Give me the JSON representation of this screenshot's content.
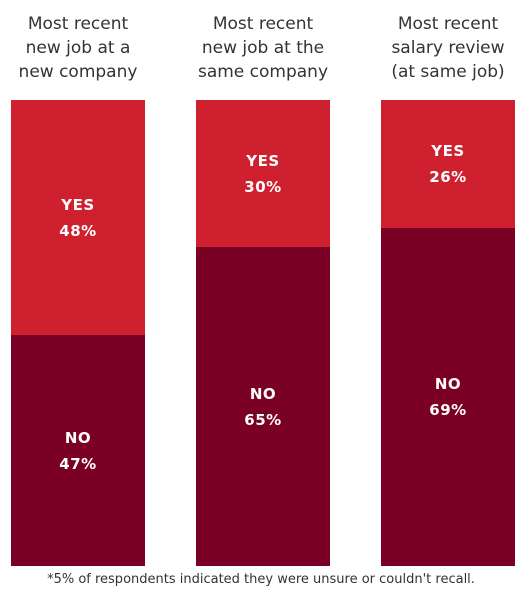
{
  "chart_data": {
    "type": "bar",
    "stacked": true,
    "categories": [
      [
        "Most recent",
        "new job at a",
        "new company"
      ],
      [
        "Most recent",
        "new job at the",
        "same company"
      ],
      [
        "Most recent",
        "salary review",
        "(at same job)"
      ]
    ],
    "series": [
      {
        "name": "YES",
        "values": [
          48,
          30,
          26
        ],
        "color": "#cf2030"
      },
      {
        "name": "NO",
        "values": [
          47,
          65,
          69
        ],
        "color": "#7a0026"
      }
    ],
    "ylim": [
      0,
      100
    ],
    "value_suffix": "%",
    "legend": "none",
    "grid": false,
    "footnote": "*5% of respondents indicated they were unsure or couldn't recall."
  }
}
